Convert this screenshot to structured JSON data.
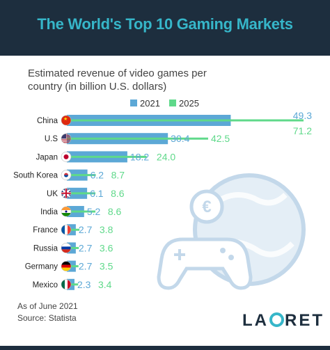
{
  "header": {
    "title": "The World's Top 10 Gaming Markets"
  },
  "subtitle": "Estimated revenue of video games per country (in billion U.S. dollars)",
  "footer": {
    "note": "As of June 2021",
    "source": "Source: Statista"
  },
  "logo": {
    "left": "LA",
    "right": "RET"
  },
  "colors": {
    "series_2021": "#5ca8d6",
    "series_2025": "#5fd98a",
    "header_bg": "#1d2e3e",
    "title": "#36b6c9"
  },
  "chart_data": {
    "type": "bar",
    "orientation": "horizontal",
    "categories": [
      "China",
      "U.S",
      "Japan",
      "South Korea",
      "UK",
      "India",
      "France",
      "Russia",
      "Germany",
      "Mexico"
    ],
    "flags": [
      "china-flag-icon",
      "us-flag-icon",
      "japan-flag-icon",
      "south-korea-flag-icon",
      "uk-flag-icon",
      "india-flag-icon",
      "france-flag-icon",
      "russia-flag-icon",
      "germany-flag-icon",
      "mexico-flag-icon"
    ],
    "series": [
      {
        "name": "2021",
        "values": [
          49.3,
          30.4,
          18.2,
          6.2,
          6.1,
          5.2,
          2.7,
          2.7,
          2.7,
          2.3
        ]
      },
      {
        "name": "2025",
        "values": [
          71.2,
          42.5,
          24.0,
          8.7,
          8.6,
          8.6,
          3.8,
          3.6,
          3.5,
          3.4
        ]
      }
    ],
    "value_labels": [
      [
        "49.3",
        "30.4",
        "18.2",
        "6.2",
        "6.1",
        "5.2",
        "2.7",
        "2.7",
        "2.7",
        "2.3"
      ],
      [
        "71.2",
        "42.5",
        "24.0",
        "8.7",
        "8.6",
        "8.6",
        "3.8",
        "3.6",
        "3.5",
        "3.4"
      ]
    ],
    "legend_position": "top",
    "grid": false,
    "xlim": [
      0,
      71.2
    ]
  }
}
